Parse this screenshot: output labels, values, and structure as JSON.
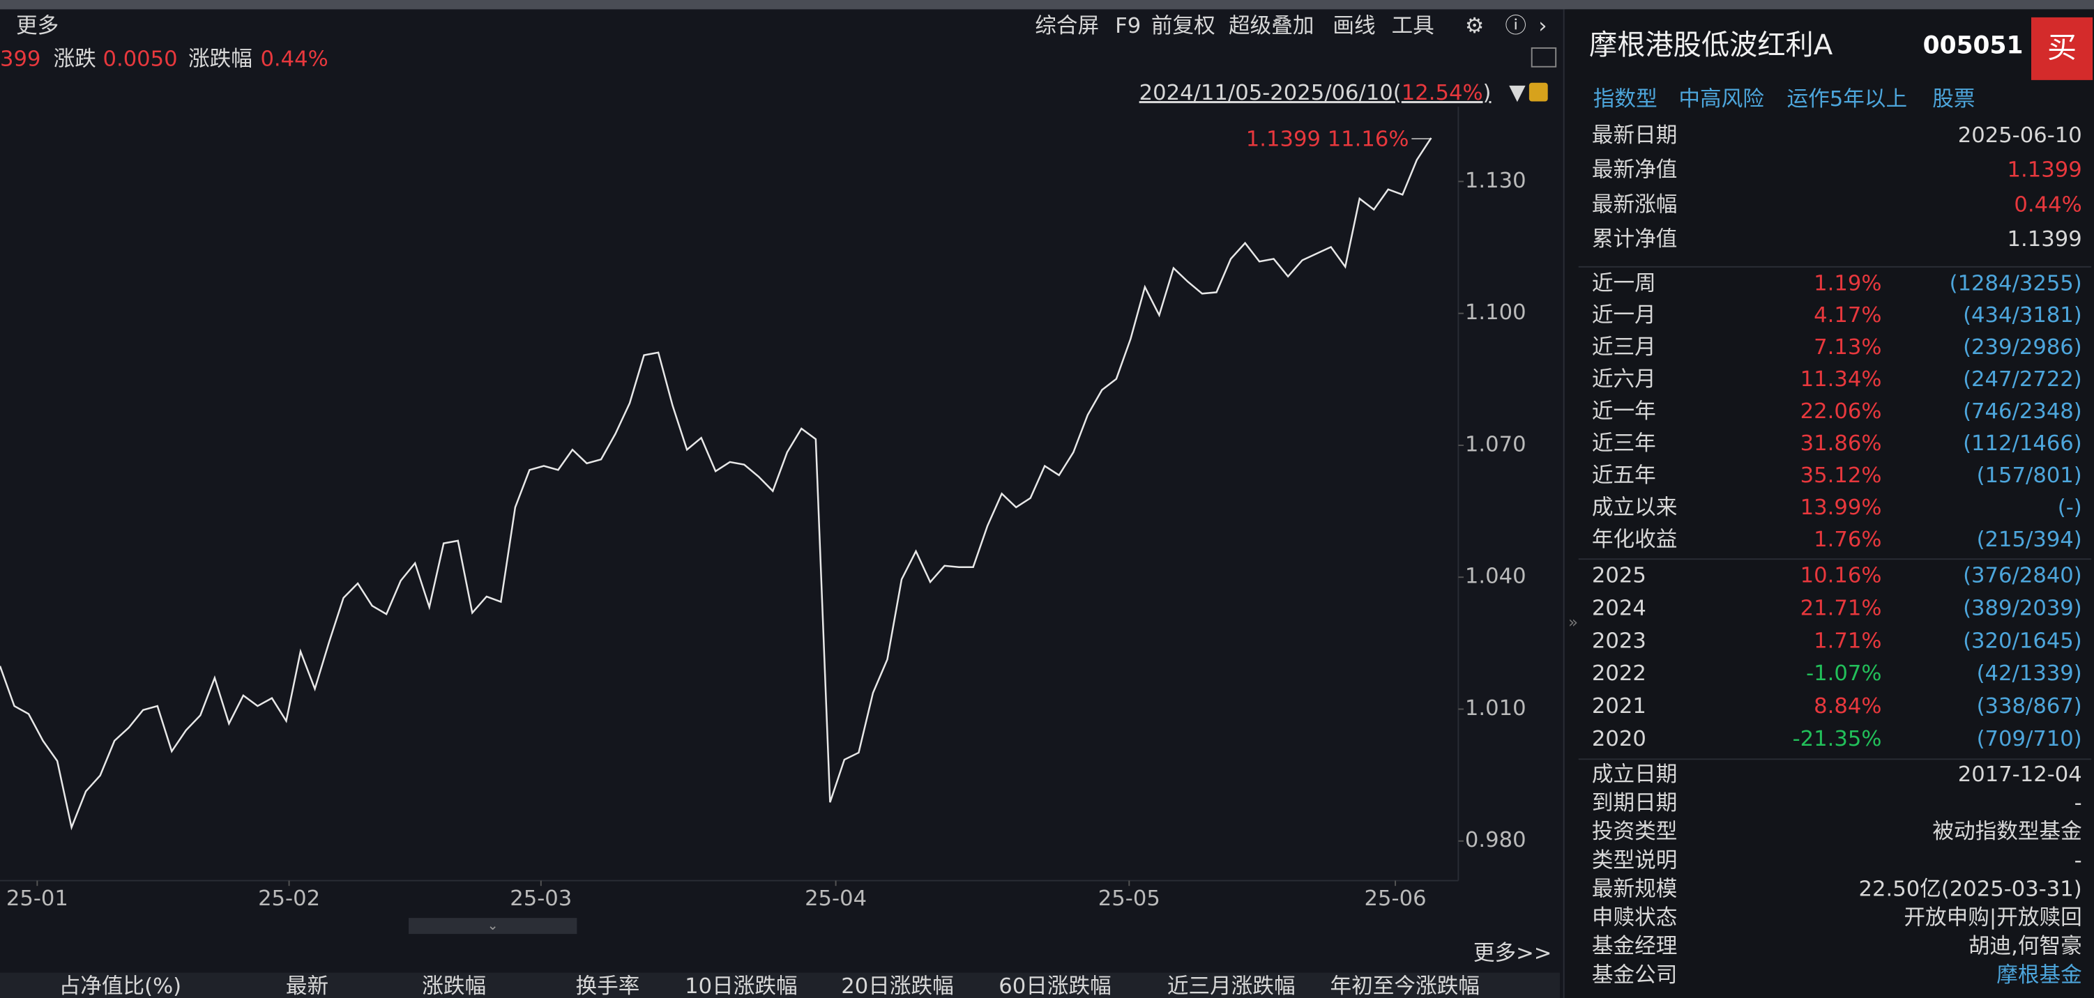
{
  "toolbar": {
    "more": "更多",
    "items": [
      "综合屏",
      "F9",
      "前复权",
      "超级叠加",
      "画线",
      "工具"
    ]
  },
  "quote": {
    "cut_value": "399",
    "change_label": "涨跌",
    "change": "0.0050",
    "pct_label": "涨跌幅",
    "pct": "0.44%"
  },
  "range": {
    "dates": "2024/11/05-2025/06/10(",
    "pct": "12.54%",
    "close": ")"
  },
  "chart_data": {
    "type": "line",
    "color": "#e8e8e8",
    "values": [
      1.0198,
      1.0107,
      1.0089,
      1.0028,
      0.9982,
      0.9831,
      0.9913,
      0.9949,
      1.0028,
      1.0058,
      1.0098,
      1.0107,
      1.0004,
      1.0052,
      1.0086,
      1.0171,
      1.0067,
      1.0131,
      1.0107,
      1.0125,
      1.0073,
      1.0231,
      1.0146,
      1.0253,
      1.0353,
      1.0386,
      1.0335,
      1.0316,
      1.0392,
      1.0432,
      1.0332,
      1.0477,
      1.0483,
      1.0319,
      1.0356,
      1.0344,
      1.0559,
      1.0644,
      1.0653,
      1.0644,
      1.069,
      1.0659,
      1.0668,
      1.0726,
      1.0796,
      1.0905,
      1.0911,
      1.079,
      1.069,
      1.0717,
      1.0641,
      1.0662,
      1.0656,
      1.0629,
      1.0596,
      1.0684,
      1.0738,
      1.0714,
      0.9888,
      0.9985,
      1.0001,
      1.0137,
      1.0213,
      1.0395,
      1.0459,
      1.0389,
      1.0426,
      1.0423,
      1.0423,
      1.0517,
      1.059,
      1.0559,
      1.058,
      1.0653,
      1.0632,
      1.0684,
      1.0769,
      1.0826,
      1.0851,
      1.0942,
      1.106,
      1.0996,
      1.1103,
      1.1072,
      1.1045,
      1.1048,
      1.1124,
      1.116,
      1.1118,
      1.1124,
      1.1084,
      1.1121,
      1.1136,
      1.1151,
      1.1106,
      1.1261,
      1.1236,
      1.1282,
      1.127,
      1.1349,
      1.1399
    ],
    "xlim": [
      0,
      101.9
    ],
    "xticks": [
      {
        "value": 2.6,
        "label": "25-01"
      },
      {
        "value": 20.2,
        "label": "25-02"
      },
      {
        "value": 37.8,
        "label": "25-03"
      },
      {
        "value": 58.4,
        "label": "25-04"
      },
      {
        "value": 78.9,
        "label": "25-05"
      },
      {
        "value": 97.5,
        "label": "25-06"
      }
    ],
    "ylim": [
      0.971,
      1.147
    ],
    "yticks": [
      {
        "value": 0.98,
        "label": "0.980"
      },
      {
        "value": 1.01,
        "label": "1.010"
      },
      {
        "value": 1.04,
        "label": "1.040"
      },
      {
        "value": 1.07,
        "label": "1.070"
      },
      {
        "value": 1.1,
        "label": "1.100"
      },
      {
        "value": 1.13,
        "label": "1.130"
      }
    ],
    "annotation": "1.1399 11.16%"
  },
  "bottom": {
    "more": "更多>>",
    "columns": [
      "占净值比(%)",
      "最新",
      "涨跌幅",
      "换手率",
      "10日涨跌幅",
      "20日涨跌幅",
      "60日涨跌幅",
      "近三月涨跌幅",
      "年初至今涨跌幅"
    ]
  },
  "sidebar": {
    "name": "摩根港股低波红利A",
    "code": "005051",
    "buy": "买",
    "tags": [
      "指数型",
      "中高风险",
      "运作5年以上",
      "股票"
    ],
    "info": [
      [
        "最新日期",
        "2025-06-10"
      ],
      [
        "最新净值",
        "1.1399"
      ],
      [
        "最新涨幅",
        "0.44%"
      ],
      [
        "累计净值",
        "1.1399"
      ]
    ],
    "perf": [
      [
        "近一周",
        "1.19%",
        "(1284/3255)"
      ],
      [
        "近一月",
        "4.17%",
        "(434/3181)"
      ],
      [
        "近三月",
        "7.13%",
        "(239/2986)"
      ],
      [
        "近六月",
        "11.34%",
        "(247/2722)"
      ],
      [
        "近一年",
        "22.06%",
        "(746/2348)"
      ],
      [
        "近三年",
        "31.86%",
        "(112/1466)"
      ],
      [
        "近五年",
        "35.12%",
        "(157/801)"
      ],
      [
        "成立以来",
        "13.99%",
        "(-)"
      ],
      [
        "年化收益",
        "1.76%",
        "(215/394)"
      ]
    ],
    "years": [
      [
        "2025",
        "10.16%",
        "(376/2840)"
      ],
      [
        "2024",
        "21.71%",
        "(389/2039)"
      ],
      [
        "2023",
        "1.71%",
        "(320/1645)"
      ],
      [
        "2022",
        "-1.07%",
        "(42/1339)"
      ],
      [
        "2021",
        "8.84%",
        "(338/867)"
      ],
      [
        "2020",
        "-21.35%",
        "(709/710)"
      ]
    ],
    "details": [
      [
        "成立日期",
        "2017-12-04"
      ],
      [
        "到期日期",
        "-"
      ],
      [
        "投资类型",
        "被动指数型基金"
      ],
      [
        "类型说明",
        "-"
      ],
      [
        "最新规模",
        "22.50亿(2025-03-31)"
      ],
      [
        "申赎状态",
        "开放申购|开放赎回"
      ],
      [
        "基金经理",
        "胡迪,何智豪"
      ],
      [
        "基金公司",
        "摩根基金"
      ]
    ]
  }
}
